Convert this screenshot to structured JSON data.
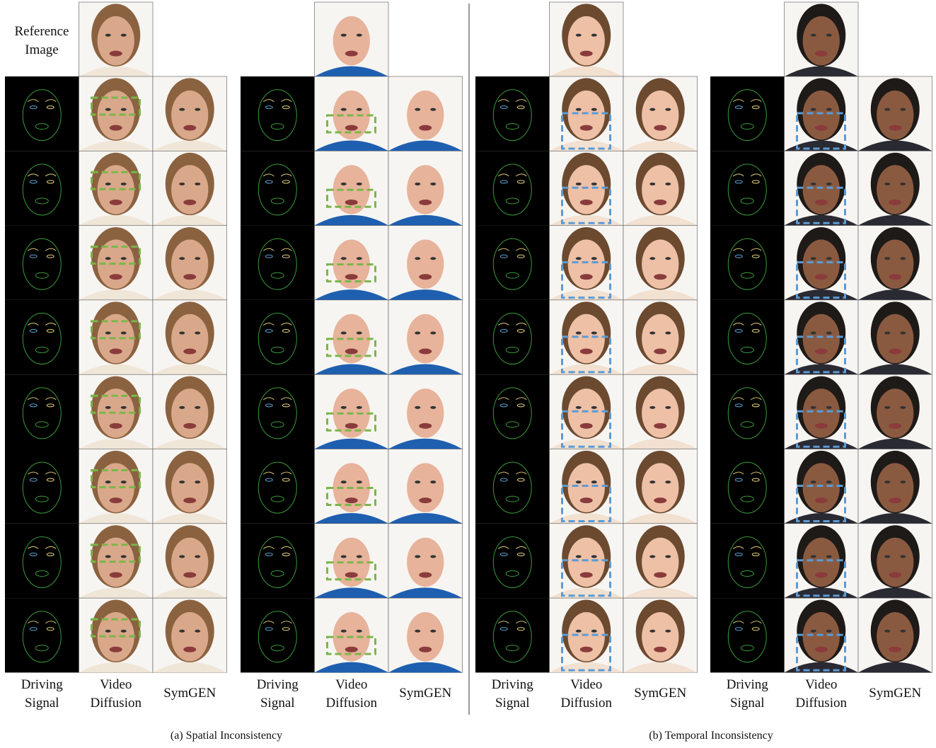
{
  "reference_label": "Reference Image",
  "groups": [
    {
      "columns": [
        "Driving Signal",
        "Video Diffusion",
        "SymGEN"
      ]
    },
    {
      "columns": [
        "Driving Signal",
        "Video Diffusion",
        "SymGEN"
      ]
    },
    {
      "columns": [
        "Driving Signal",
        "Video Diffusion",
        "SymGEN"
      ]
    },
    {
      "columns": [
        "Driving Signal",
        "Video Diffusion",
        "SymGEN"
      ]
    }
  ],
  "captions": [
    "(a) Spatial Inconsistency",
    "(b) Temporal Inconsistency"
  ]
}
